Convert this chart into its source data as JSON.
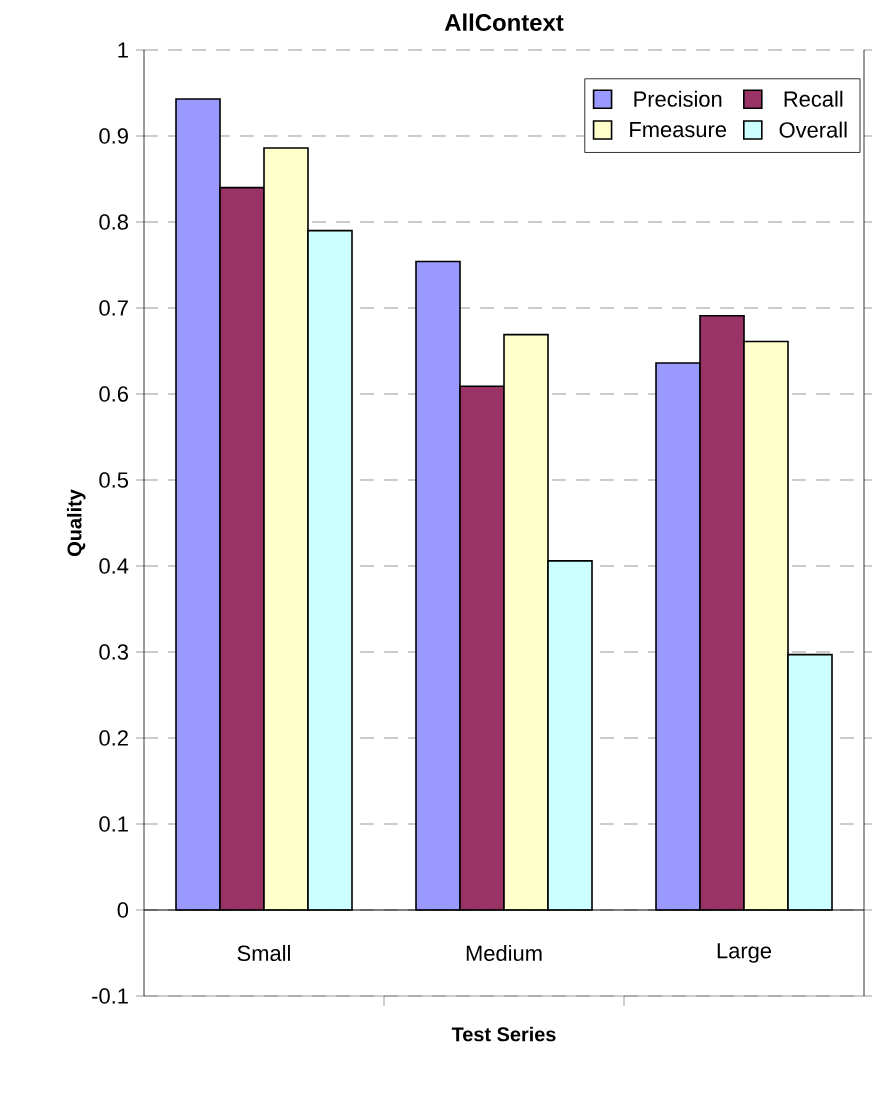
{
  "chart_data": {
    "type": "bar",
    "title": "AllContext",
    "xlabel": "Test Series",
    "ylabel": "Quality",
    "categories": [
      "Small",
      "Medium",
      "Large"
    ],
    "series": [
      {
        "name": "Precision",
        "color": "#9999ff",
        "values": [
          0.943,
          0.754,
          0.636
        ]
      },
      {
        "name": "Recall",
        "color": "#993366",
        "values": [
          0.84,
          0.609,
          0.691
        ]
      },
      {
        "name": "Fmeasure",
        "color": "#ffffcc",
        "values": [
          0.886,
          0.669,
          0.661
        ]
      },
      {
        "name": "Overall",
        "color": "#ccffff",
        "values": [
          0.79,
          0.406,
          0.297
        ]
      }
    ],
    "ylim": [
      -0.1,
      1
    ],
    "yticks": [
      -0.1,
      0,
      0.1,
      0.2,
      0.3,
      0.4,
      0.5,
      0.6,
      0.7,
      0.8,
      0.9,
      1
    ],
    "grid": "y",
    "legend": "top right"
  }
}
